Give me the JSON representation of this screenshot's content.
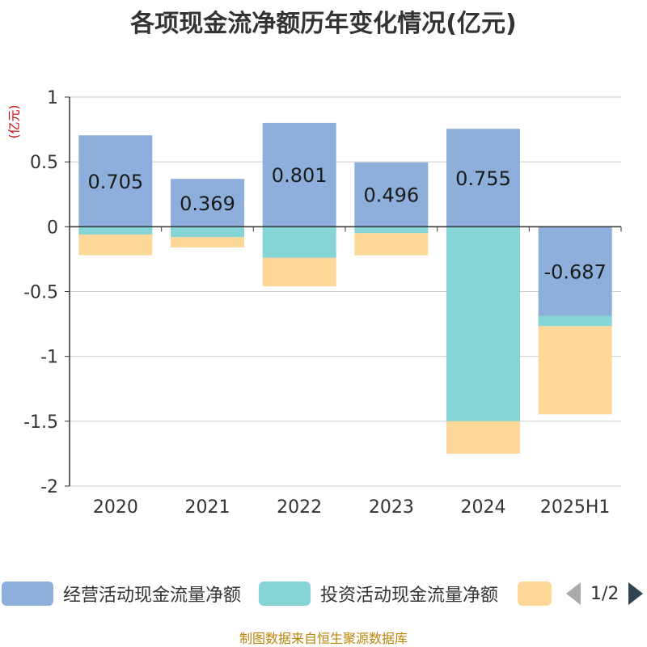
{
  "title": "各项现金流净额历年变化情况(亿元)",
  "unit_label": "(亿元)",
  "source": "制图数据来自恒生聚源数据库",
  "legend": {
    "items": [
      {
        "label": "经营活动现金流量净额",
        "color": "#8eaedb"
      },
      {
        "label": "投资活动现金流量净额",
        "color": "#86d5d6"
      },
      {
        "label": "",
        "color": "#fdd899"
      }
    ],
    "page": "1/2"
  },
  "chart_data": {
    "type": "bar",
    "stacked": true,
    "categories": [
      "2020",
      "2021",
      "2022",
      "2023",
      "2024",
      "2025H1"
    ],
    "ylim": [
      -2,
      1
    ],
    "yticks": [
      "1",
      "0.5",
      "0",
      "-0.5",
      "-1",
      "-1.5",
      "-2"
    ],
    "ytick_values": [
      1,
      0.5,
      0,
      -0.5,
      -1,
      -1.5,
      -2
    ],
    "grid": true,
    "legend_position": "bottom",
    "series": [
      {
        "name": "经营活动现金流量净额",
        "color": "#8eaedb",
        "values": [
          0.705,
          0.369,
          0.801,
          0.496,
          0.755,
          -0.687
        ],
        "labels": [
          "0.705",
          "0.369",
          "0.801",
          "0.496",
          "0.755",
          "-0.687"
        ]
      },
      {
        "name": "投资活动现金流量净额",
        "color": "#86d5d6",
        "values": [
          -0.06,
          -0.08,
          -0.24,
          -0.05,
          -1.5,
          -0.08
        ]
      },
      {
        "color": "#fdd899",
        "values": [
          -0.16,
          -0.08,
          -0.22,
          -0.17,
          -0.25,
          -0.68
        ]
      }
    ]
  }
}
